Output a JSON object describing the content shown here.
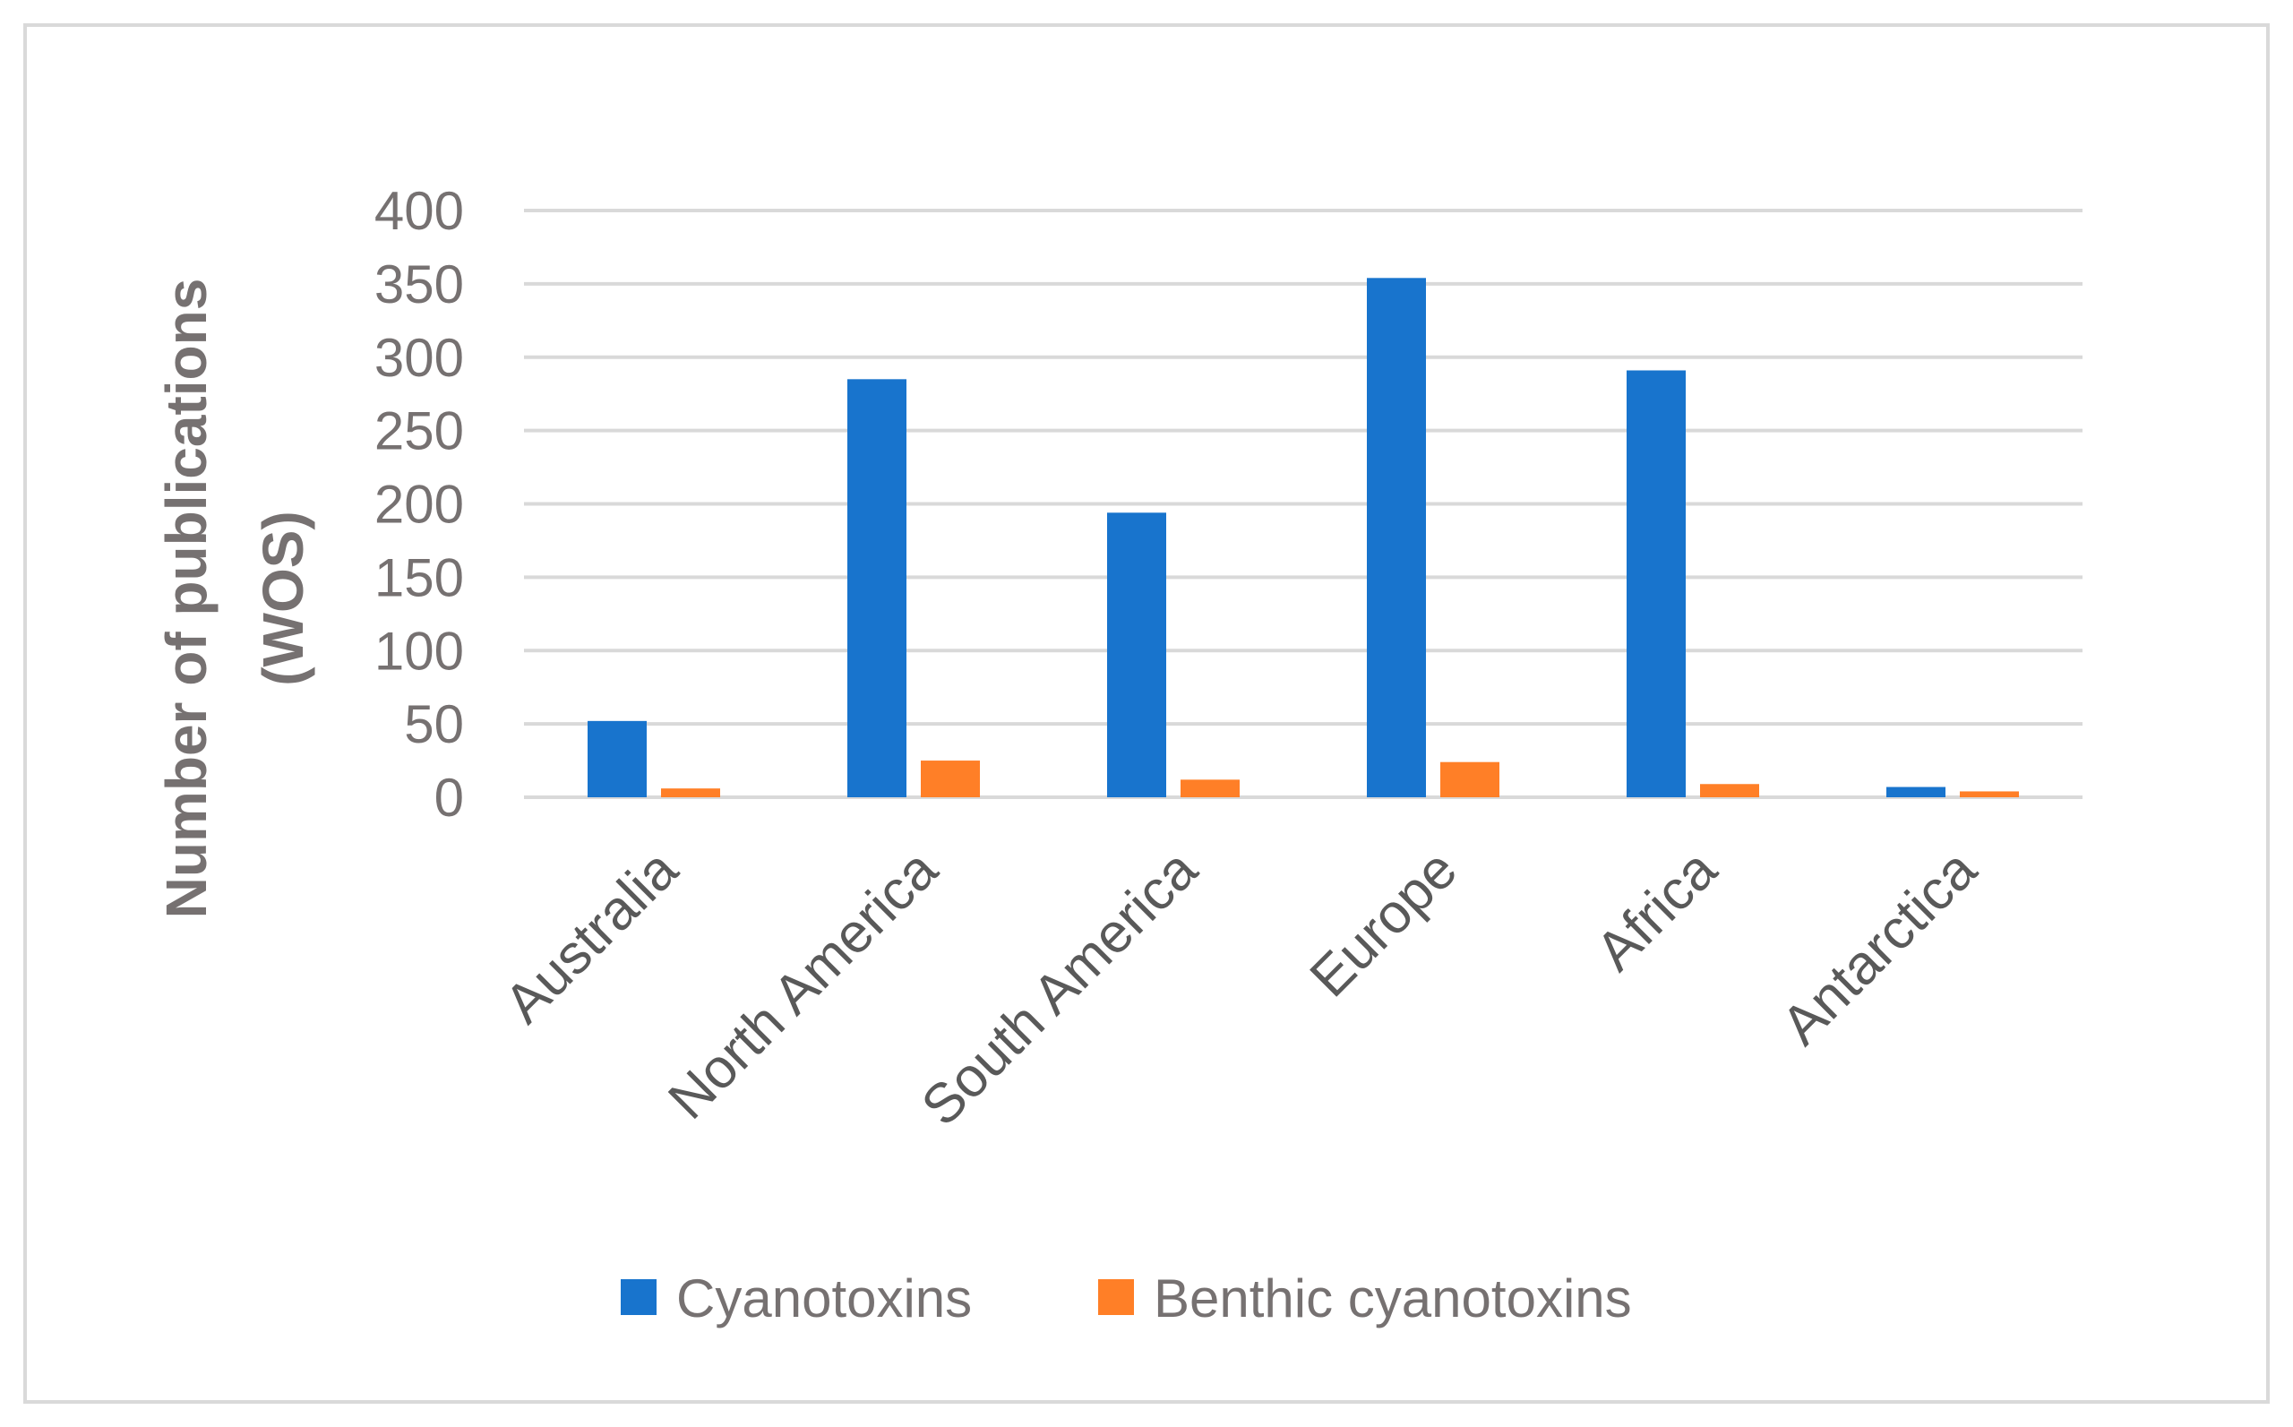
{
  "chart_data": {
    "type": "bar",
    "title": "",
    "xlabel": "",
    "ylabel": "Number of publications (WOS)",
    "ylabel_lines": [
      "Number of publications",
      "(WOS)"
    ],
    "ylim": [
      0,
      400
    ],
    "yticks": [
      0,
      50,
      100,
      150,
      200,
      250,
      300,
      350,
      400
    ],
    "grid": true,
    "legend_position": "bottom",
    "categories": [
      "Australia",
      "North America",
      "South America",
      "Europe",
      "Africa",
      "Antarctica"
    ],
    "series": [
      {
        "name": "Cyanotoxins",
        "color": "#1874CD",
        "values": [
          52,
          285,
          194,
          354,
          291,
          7
        ]
      },
      {
        "name": "Benthic cyanotoxins",
        "color": "#FF7F27",
        "values": [
          6,
          25,
          12,
          24,
          9,
          4
        ]
      }
    ]
  }
}
